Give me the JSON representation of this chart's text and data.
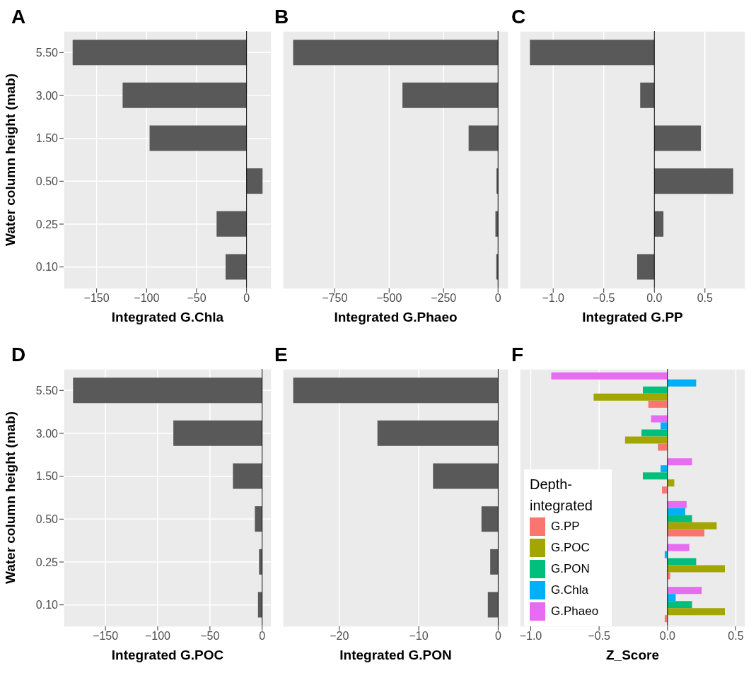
{
  "chart_data": [
    {
      "type": "bar",
      "orientation": "horizontal",
      "title": "A",
      "xlabel": "Integrated G.Chla",
      "ylabel": "Water column height (mab)",
      "categories": [
        "5.50",
        "3.00",
        "1.50",
        "0.50",
        "0.25",
        "0.10"
      ],
      "values": [
        -174,
        -124,
        -97,
        16,
        -30,
        -21
      ],
      "color": "#595959",
      "xlim": [
        -183,
        25
      ],
      "xticks": [
        {
          "value": -150,
          "label": "−150"
        },
        {
          "value": -100,
          "label": "−100"
        },
        {
          "value": -50,
          "label": "−50"
        },
        {
          "value": 0,
          "label": "0"
        }
      ],
      "ref_lines": [
        {
          "axis": "x",
          "value": 0,
          "color": "#000000"
        }
      ],
      "grid": true
    },
    {
      "type": "bar",
      "orientation": "horizontal",
      "title": "B",
      "xlabel": "Integrated G.Phaeo",
      "categories": [
        "5.50",
        "3.00",
        "1.50",
        "0.50",
        "0.25",
        "0.10"
      ],
      "values": [
        -941,
        -439,
        -135,
        -7,
        -12,
        -8
      ],
      "color": "#595959",
      "xlim": [
        -988,
        48
      ],
      "xticks": [
        {
          "value": -750,
          "label": "−750"
        },
        {
          "value": -500,
          "label": "−500"
        },
        {
          "value": -250,
          "label": "−250"
        },
        {
          "value": 0,
          "label": "0"
        }
      ],
      "ref_lines": [
        {
          "axis": "x",
          "value": 0,
          "color": "#000000"
        }
      ],
      "grid": true,
      "tick_labels": "x"
    },
    {
      "type": "bar",
      "orientation": "horizontal",
      "title": "C",
      "xlabel": "Integrated G.PP",
      "categories": [
        "5.50",
        "3.00",
        "1.50",
        "0.50",
        "0.25",
        "0.10"
      ],
      "values": [
        -1.23,
        -0.14,
        0.46,
        0.78,
        0.09,
        -0.17
      ],
      "color": "#595959",
      "xlim": [
        -1.33,
        0.9
      ],
      "xticks": [
        {
          "value": -1,
          "label": "−1.0"
        },
        {
          "value": -0.5,
          "label": "−0.5"
        },
        {
          "value": 0,
          "label": "0.0"
        },
        {
          "value": 0.5,
          "label": "0.5"
        }
      ],
      "ref_lines": [
        {
          "axis": "x",
          "value": 0,
          "color": "#000000"
        }
      ],
      "grid": true,
      "tick_labels": "x"
    },
    {
      "type": "bar",
      "orientation": "horizontal",
      "title": "D",
      "xlabel": "Integrated G.POC",
      "ylabel": "Water column height (mab)",
      "categories": [
        "5.50",
        "3.00",
        "1.50",
        "0.50",
        "0.25",
        "0.10"
      ],
      "values": [
        -181,
        -85,
        -28,
        -7,
        -3,
        -4
      ],
      "color": "#595959",
      "xlim": [
        -190,
        9
      ],
      "xticks": [
        {
          "value": -150,
          "label": "−150"
        },
        {
          "value": -100,
          "label": "−100"
        },
        {
          "value": -50,
          "label": "−50"
        },
        {
          "value": 0,
          "label": "0"
        }
      ],
      "ref_lines": [
        {
          "axis": "x",
          "value": 0,
          "color": "#000000"
        }
      ],
      "grid": true
    },
    {
      "type": "bar",
      "orientation": "horizontal",
      "title": "E",
      "xlabel": "Integrated G.PON",
      "categories": [
        "5.50",
        "3.00",
        "1.50",
        "0.50",
        "0.25",
        "0.10"
      ],
      "values": [
        -25.8,
        -15.2,
        -8.2,
        -2.1,
        -1.0,
        -1.3
      ],
      "color": "#595959",
      "xlim": [
        -27.1,
        1.3
      ],
      "xticks": [
        {
          "value": -20,
          "label": "−20"
        },
        {
          "value": -10,
          "label": "−10"
        },
        {
          "value": 0,
          "label": "0"
        }
      ],
      "ref_lines": [
        {
          "axis": "x",
          "value": 0,
          "color": "#000000"
        }
      ],
      "grid": true,
      "tick_labels": "x"
    },
    {
      "type": "bar",
      "orientation": "horizontal",
      "title": "F",
      "xlabel": "Z_Score",
      "categories": [
        "5.50",
        "3.00",
        "1.50",
        "0.50",
        "0.25",
        "0.10"
      ],
      "legend_title": "Depth-integrated",
      "legend": "bottom left",
      "series": [
        {
          "name": "G.PP",
          "color": "#f8766d",
          "values": [
            -0.14,
            -0.07,
            -0.04,
            0.27,
            0.02,
            -0.02
          ]
        },
        {
          "name": "G.POC",
          "color": "#a3a500",
          "values": [
            -0.54,
            -0.31,
            0.05,
            0.36,
            0.42,
            0.42
          ]
        },
        {
          "name": "G.PON",
          "color": "#00bf7d",
          "values": [
            -0.18,
            -0.19,
            -0.18,
            0.18,
            0.21,
            0.18
          ]
        },
        {
          "name": "G.Chla",
          "color": "#00b0f6",
          "values": [
            0.21,
            -0.05,
            -0.05,
            0.13,
            -0.02,
            0.06
          ]
        },
        {
          "name": "G.Phaeo",
          "color": "#e76bf3",
          "values": [
            -0.85,
            -0.12,
            0.18,
            0.14,
            0.16,
            0.25
          ]
        }
      ],
      "xlim": [
        -1.08,
        0.57
      ],
      "xticks": [
        {
          "value": -1,
          "label": "−1.0"
        },
        {
          "value": -0.5,
          "label": "−0.5"
        },
        {
          "value": 0,
          "label": "0.0"
        },
        {
          "value": 0.5,
          "label": "0.5"
        }
      ],
      "ref_lines": [
        {
          "axis": "x",
          "value": 0,
          "color": "#000000"
        }
      ],
      "grid": true,
      "tick_labels": "x"
    }
  ]
}
